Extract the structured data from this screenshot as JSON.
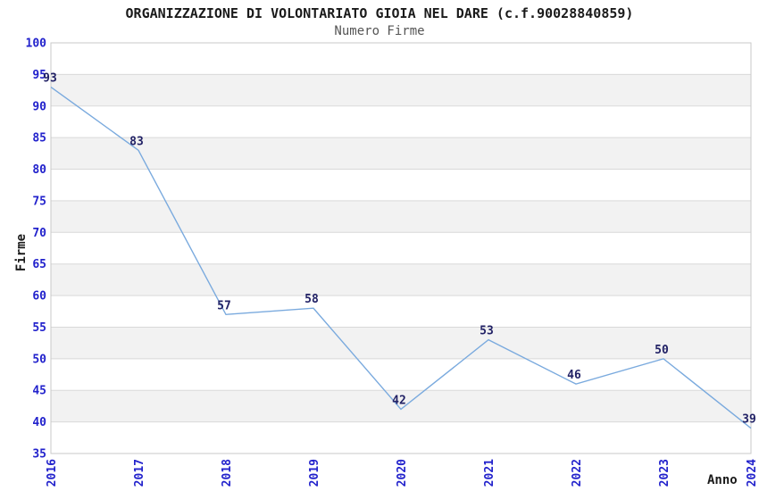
{
  "header": {
    "title": "ORGANIZZAZIONE DI VOLONTARIATO GIOIA NEL DARE (c.f.90028840859)",
    "subtitle": "Numero Firme"
  },
  "chart_data": {
    "type": "line",
    "title": "ORGANIZZAZIONE DI VOLONTARIATO GIOIA NEL DARE (c.f.90028840859)",
    "subtitle": "Numero Firme",
    "xlabel": "Anno",
    "ylabel": "Firme",
    "x": [
      "2016",
      "2017",
      "2018",
      "2019",
      "2020",
      "2021",
      "2022",
      "2023",
      "2024"
    ],
    "values": [
      93,
      83,
      57,
      58,
      42,
      53,
      46,
      50,
      39
    ],
    "ylim": [
      35,
      100
    ],
    "ytick_step": 5,
    "yticks": [
      35,
      40,
      45,
      50,
      55,
      60,
      65,
      70,
      75,
      80,
      85,
      90,
      95,
      100
    ],
    "grid": true,
    "alternating_bands": true,
    "legend_position": "none",
    "point_labels_visible": true
  },
  "colors": {
    "line": "#7aaade",
    "point_label": "#222266",
    "tick_label": "#2222cc",
    "band": "#f2f2f2",
    "gridline": "#d9d9d9",
    "plot_border": "#c9c9c9",
    "title_text": "#1a1a1a",
    "subtitle_text": "#555555",
    "background": "#ffffff"
  }
}
